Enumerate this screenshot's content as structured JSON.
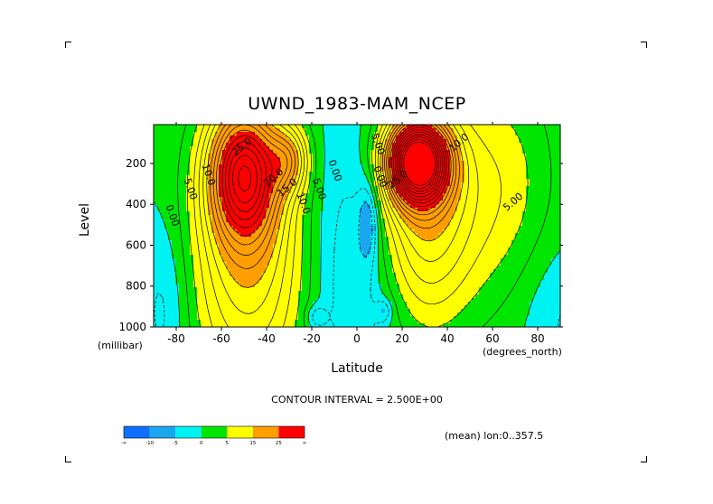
{
  "chart_data": {
    "type": "contour",
    "title": "UWND_1983-MAM_NCEP",
    "xlabel": "Latitude",
    "ylabel": "Level",
    "x_units": "(degrees_north)",
    "y_units": "(millibar)",
    "xlim": [
      -90,
      90
    ],
    "ylim": [
      1000,
      10
    ],
    "y_reversed": true,
    "x_ticks": [
      "-80",
      "-60",
      "-40",
      "-20",
      "0",
      "20",
      "40",
      "60",
      "80"
    ],
    "x_tick_values": [
      -80,
      -60,
      -40,
      -20,
      0,
      20,
      40,
      60,
      80
    ],
    "y_ticks": [
      "200",
      "400",
      "600",
      "800",
      "1000"
    ],
    "y_tick_values": [
      200,
      400,
      600,
      800,
      1000
    ],
    "contour_interval_text": "CONTOUR INTERVAL = 2.500E+00",
    "contour_interval": 2.5,
    "mean_text": "(mean) lon:0..357.5",
    "contour_labels": [
      {
        "text": "25.0",
        "lat": -50,
        "lev": 130
      },
      {
        "text": "20.0",
        "lat": -36,
        "lev": 280
      },
      {
        "text": "15.0",
        "lat": -30,
        "lev": 330
      },
      {
        "text": "10.0",
        "lat": -25,
        "lev": 400
      },
      {
        "text": "5.00",
        "lat": -18,
        "lev": 330
      },
      {
        "text": "0.00",
        "lat": -11,
        "lev": 240
      },
      {
        "text": "10.0",
        "lat": -67,
        "lev": 260
      },
      {
        "text": "5.00",
        "lat": -75,
        "lev": 330
      },
      {
        "text": "0.00",
        "lat": -83,
        "lev": 460
      },
      {
        "text": "0.00",
        "lat": 9,
        "lev": 270
      },
      {
        "text": "5.00",
        "lat": 8,
        "lev": 110
      },
      {
        "text": "25.0",
        "lat": 19,
        "lev": 290
      },
      {
        "text": "10.0",
        "lat": 46,
        "lev": 110
      },
      {
        "text": "5.00",
        "lat": 70,
        "lev": 400
      }
    ],
    "colorbar": {
      "labels": [
        "-∞",
        "-10",
        "-5",
        "0",
        "5",
        "15",
        "25",
        "∞"
      ],
      "bins": [
        {
          "from": "-inf",
          "to": -10,
          "color": "#0f6fff"
        },
        {
          "from": -10,
          "to": -5,
          "color": "#1ba7f0"
        },
        {
          "from": -5,
          "to": 0,
          "color": "#00f2f2"
        },
        {
          "from": 0,
          "to": 5,
          "color": "#00e600"
        },
        {
          "from": 5,
          "to": 15,
          "color": "#ffff00"
        },
        {
          "from": 15,
          "to": 25,
          "color": "#ff9e00"
        },
        {
          "from": 25,
          "to": "inf",
          "color": "#ff0000"
        }
      ]
    },
    "features": [
      {
        "kind": "jet",
        "lat": -50,
        "lev": 230,
        "max": 30
      },
      {
        "kind": "jet",
        "lat": -30,
        "lev": 180,
        "max": 27
      },
      {
        "kind": "jet",
        "lat": 27,
        "lev": 180,
        "max": 45
      },
      {
        "kind": "easterly",
        "lat": 5,
        "lev": 500,
        "min": -7
      },
      {
        "kind": "easterly",
        "lat": -18,
        "lev": 950,
        "min": -7
      },
      {
        "kind": "easterly",
        "lat": 12,
        "lev": 920,
        "min": -7
      }
    ]
  }
}
